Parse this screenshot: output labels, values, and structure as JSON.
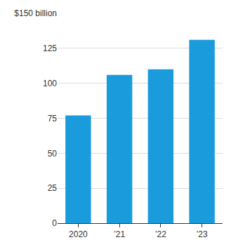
{
  "chart_data": {
    "type": "bar",
    "categories": [
      "2020",
      "’21",
      "’22",
      "’23"
    ],
    "values": [
      77,
      106,
      110,
      131
    ],
    "color": "#1a9bdc",
    "ylim": [
      0,
      150
    ],
    "yticks": [
      0,
      25,
      50,
      75,
      100,
      125,
      {
        "value": 150,
        "label": "$150 billion"
      }
    ],
    "grid": true
  }
}
